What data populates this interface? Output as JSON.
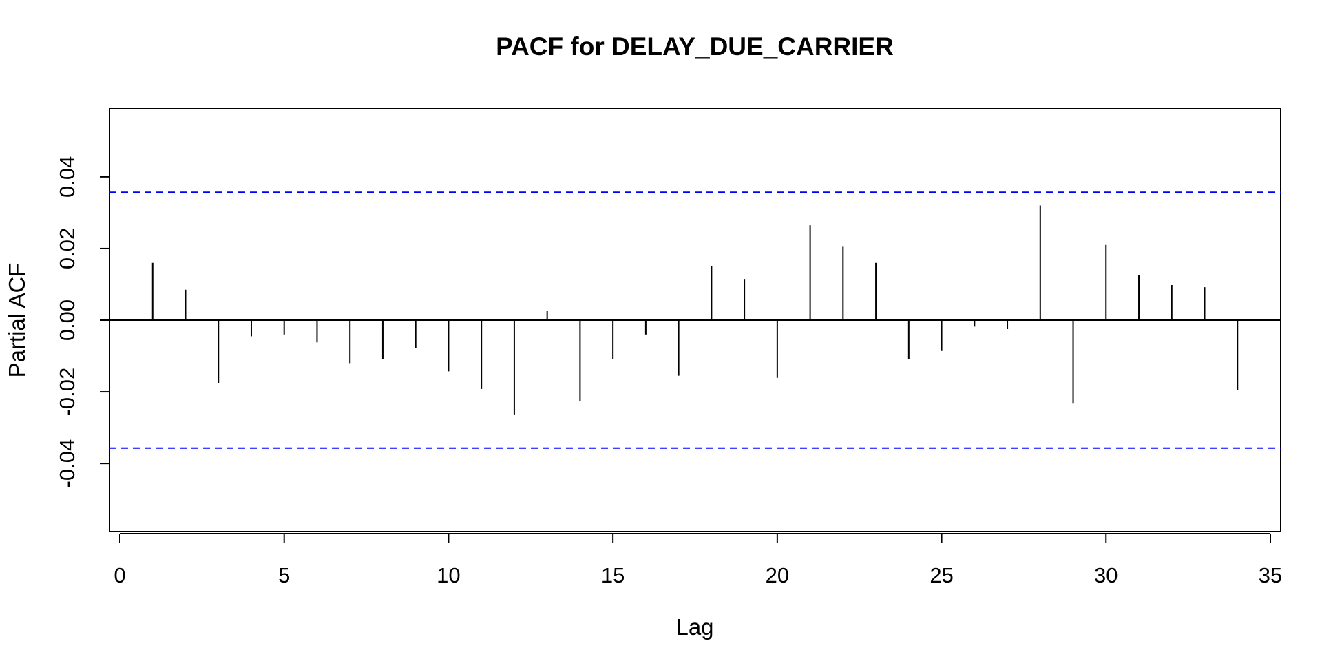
{
  "chart_data": {
    "type": "bar",
    "title": "PACF for DELAY_DUE_CARRIER",
    "xlabel": "Lag",
    "ylabel": "Partial ACF",
    "xlim": [
      0,
      35
    ],
    "ylim": [
      -0.059,
      0.059
    ],
    "x_ticks": [
      0,
      5,
      10,
      15,
      20,
      25,
      30,
      35
    ],
    "x_tick_labels": [
      "0",
      "5",
      "10",
      "15",
      "20",
      "25",
      "30",
      "35"
    ],
    "y_ticks": [
      -0.04,
      -0.02,
      0.0,
      0.02,
      0.04
    ],
    "y_tick_labels": [
      "-0.04",
      "-0.02",
      "0.00",
      "0.02",
      "0.04"
    ],
    "confidence_bound": 0.0357,
    "confidence_color": "#0000ff",
    "bar_color": "#000000",
    "grid": false,
    "legend": "none",
    "series": [
      {
        "x": [
          1,
          2,
          3,
          4,
          5,
          6,
          7,
          8,
          9,
          10,
          11,
          12,
          13,
          14,
          15,
          16,
          17,
          18,
          19,
          20,
          21,
          22,
          23,
          24,
          25,
          26,
          27,
          28,
          29,
          30,
          31,
          32,
          33,
          34
        ],
        "values": [
          0.016,
          0.0085,
          -0.0175,
          -0.0045,
          -0.004,
          -0.0062,
          -0.012,
          -0.0108,
          -0.0078,
          -0.0143,
          -0.0192,
          -0.0263,
          0.0025,
          -0.0226,
          -0.0108,
          -0.004,
          -0.0155,
          0.015,
          0.0115,
          -0.0161,
          0.0265,
          0.0205,
          0.016,
          -0.0108,
          -0.0086,
          -0.0018,
          -0.0025,
          0.032,
          -0.0233,
          0.021,
          0.0125,
          0.0098,
          0.0092,
          -0.0195
        ]
      }
    ]
  }
}
